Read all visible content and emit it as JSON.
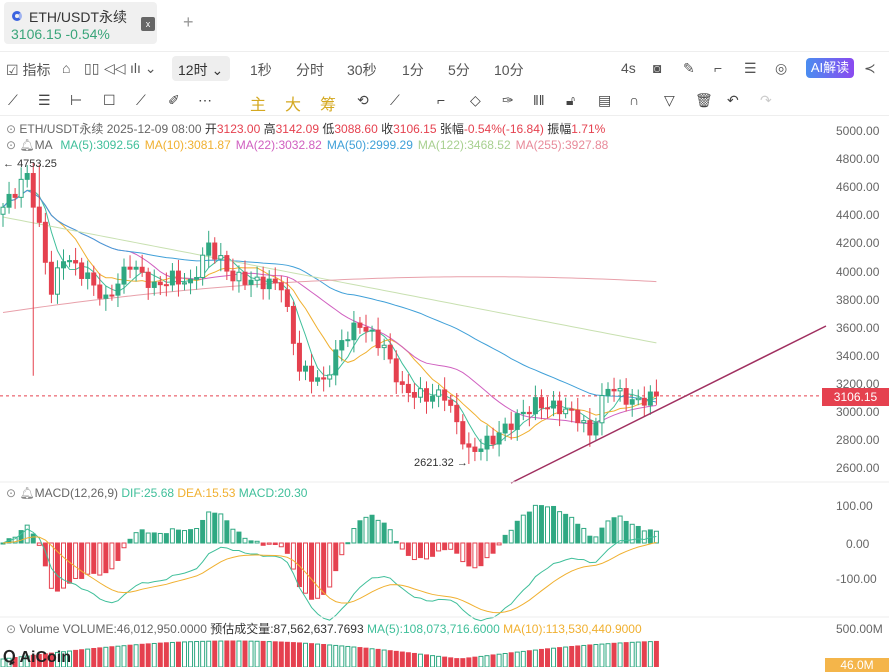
{
  "tab": {
    "symbol": "ETH/USDT永续",
    "price": "3106.15",
    "change": "-0.54%",
    "close": "x",
    "add": "+"
  },
  "toolbar": {
    "indicator": "指标",
    "timeframe": "12时",
    "intervals": [
      "1秒",
      "分时",
      "30秒",
      "1分",
      "5分",
      "10分"
    ],
    "refresh": "4s",
    "ai": "AI解读"
  },
  "drawbar": {
    "main": "主",
    "big": "大",
    "chips": "筹"
  },
  "ohlc": {
    "symbol": "ETH/USDT永续",
    "date": "2025-12-09 08:00",
    "open_l": "开",
    "open": "3123.00",
    "high_l": "高",
    "high": "3142.09",
    "low_l": "低",
    "low": "3088.60",
    "close_l": "收",
    "close": "3106.15",
    "chg_l": "张幅",
    "chg": "-0.54%(-16.84)",
    "amp_l": "振幅",
    "amp": "1.71%"
  },
  "ma": {
    "label": "MA",
    "items": [
      {
        "t": "MA(5):3092.56",
        "c": "#3fbf9a"
      },
      {
        "t": "MA(10):3081.87",
        "c": "#f0b030"
      },
      {
        "t": "MA(22):3032.82",
        "c": "#d060c0"
      },
      {
        "t": "MA(50):2999.29",
        "c": "#40a0d8"
      },
      {
        "t": "MA(122):3468.52",
        "c": "#a8d090"
      },
      {
        "t": "MA(255):3927.88",
        "c": "#e88a9a"
      }
    ]
  },
  "price_axis": [
    "5000.00",
    "4800.00",
    "4600.00",
    "4400.00",
    "4200.00",
    "4000.00",
    "3800.00",
    "3600.00",
    "3400.00",
    "3200.00",
    "3000.00",
    "2800.00",
    "2600.00"
  ],
  "current_price": "3106.15",
  "high_mark": "4753.25",
  "low_mark": "2621.32",
  "macd": {
    "label": "MACD(12,26,9)",
    "dif": "DIF:25.68",
    "dea": "DEA:15.53",
    "macd": "MACD:20.30",
    "axis": [
      "100.00",
      "0.00",
      "-100.00"
    ]
  },
  "volume": {
    "label": "Volume",
    "vol": "VOLUME:46,012,950.0000",
    "est": "预估成交量:87,562,637.7693",
    "ma5": "MA(5):108,073,716.6000",
    "ma10": "MA(10):113,530,440.9000",
    "axis": "500.00M",
    "tag": "46.0M"
  },
  "watermark": "AiCoin",
  "price_path": [
    [
      0,
      4450
    ],
    [
      4,
      4680
    ],
    [
      6,
      4300
    ],
    [
      8,
      3850
    ],
    [
      10,
      4100
    ],
    [
      14,
      3950
    ],
    [
      17,
      3780
    ],
    [
      21,
      4050
    ],
    [
      25,
      3880
    ],
    [
      28,
      3950
    ],
    [
      31,
      3900
    ],
    [
      34,
      4180
    ],
    [
      38,
      3950
    ],
    [
      42,
      3920
    ],
    [
      46,
      3900
    ],
    [
      49,
      3300
    ],
    [
      53,
      3200
    ],
    [
      56,
      3500
    ],
    [
      59,
      3620
    ],
    [
      63,
      3450
    ],
    [
      66,
      3150
    ],
    [
      70,
      3100
    ],
    [
      73,
      3120
    ],
    [
      77,
      2700
    ],
    [
      81,
      2800
    ],
    [
      85,
      2950
    ],
    [
      88,
      3050
    ],
    [
      92,
      3020
    ],
    [
      95,
      2960
    ],
    [
      97,
      2830
    ],
    [
      100,
      3180
    ],
    [
      104,
      3060
    ],
    [
      108,
      3106
    ]
  ],
  "colors": {
    "up": "#2fa882",
    "down": "#e5414f"
  }
}
